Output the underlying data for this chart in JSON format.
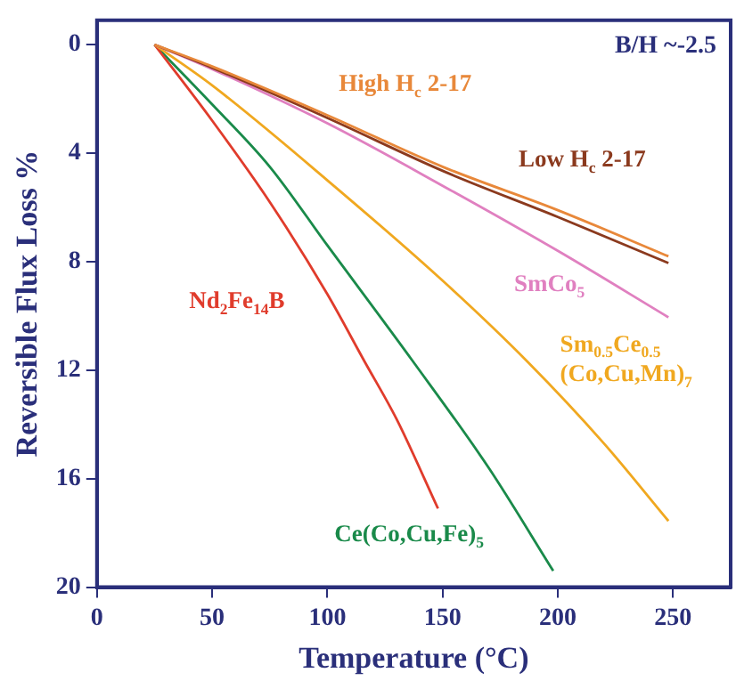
{
  "chart_data": {
    "type": "line",
    "xlabel": "Temperature (°C)",
    "ylabel": "Reversible Flux Loss %",
    "xlim": [
      0,
      275
    ],
    "xticks": [
      0,
      50,
      100,
      150,
      200,
      250
    ],
    "ylim": [
      20,
      -0.9
    ],
    "yticks": [
      0,
      4,
      8,
      12,
      16,
      20
    ],
    "grid": false,
    "legend": false,
    "marker": "none",
    "line_style": "solid",
    "annotations": [
      "B/H ~-2.5"
    ],
    "series": [
      {
        "name": "High H$_{c}$ 2-17",
        "color": "#e8883a",
        "x": [
          25,
          50,
          100,
          150,
          200,
          248
        ],
        "values": [
          0,
          0.8,
          2.6,
          4.5,
          6.1,
          7.8
        ]
      },
      {
        "name": "Low H$_{c}$ 2-17",
        "color": "#8b3a1e",
        "x": [
          25,
          50,
          100,
          150,
          200,
          248
        ],
        "values": [
          0,
          0.85,
          2.7,
          4.65,
          6.35,
          8.05
        ]
      },
      {
        "name": "SmCo$_{5}$",
        "color": "#e080c0",
        "x": [
          25,
          50,
          100,
          150,
          200,
          248
        ],
        "values": [
          0,
          0.9,
          2.9,
          5.2,
          7.6,
          10.05
        ]
      },
      {
        "name": "Sm$_{0.5}$Ce$_{0.5}$\n(Co,Cu,Mn)$_{7}$",
        "color": "#f0a820",
        "x": [
          25,
          50,
          100,
          150,
          187,
          220,
          248
        ],
        "values": [
          0,
          1.5,
          5.0,
          8.7,
          11.7,
          14.7,
          17.56
        ]
      },
      {
        "name": "Nd$_{2}$Fe$_{14}$B",
        "color": "#e03c2c",
        "x": [
          25,
          50,
          75,
          100,
          116,
          130,
          148
        ],
        "values": [
          0,
          2.8,
          5.8,
          9.2,
          11.66,
          13.8,
          17.1
        ]
      },
      {
        "name": "Ce(Co,Cu,Fe)$_{5}$",
        "color": "#1a8a4a",
        "x": [
          25,
          50,
          75,
          100,
          137,
          170,
          198
        ],
        "values": [
          0,
          2.2,
          4.5,
          7.4,
          11.66,
          15.6,
          19.4
        ]
      }
    ]
  }
}
